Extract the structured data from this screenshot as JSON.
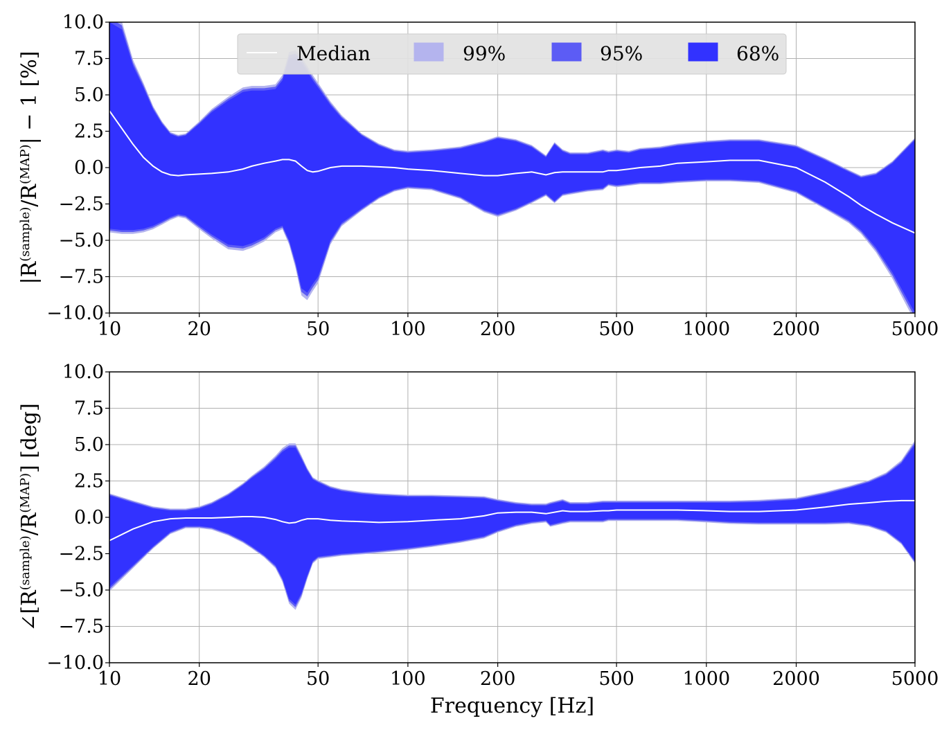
{
  "chart_data": [
    {
      "type": "area",
      "panel": "top",
      "ylabel": {
        "pre": "|R",
        "sup1": "(sample)",
        "mid": "/R",
        "sup2": "(MAP)",
        "post": "| − 1 [%]"
      },
      "xlabel": "",
      "xscale": "log",
      "xlim": [
        10,
        5000
      ],
      "ylim": [
        -10.0,
        10.0
      ],
      "xticks": [
        10,
        20,
        50,
        100,
        200,
        500,
        1000,
        2000,
        5000
      ],
      "yticks": [
        "−10.0",
        "−7.5",
        "−5.0",
        "−2.5",
        "0.0",
        "2.5",
        "5.0",
        "7.5",
        "10.0"
      ],
      "yticks_values": [
        -10,
        -7.5,
        -5,
        -2.5,
        0,
        2.5,
        5,
        7.5,
        10
      ],
      "grid": true,
      "legend": {
        "placement": "top-center",
        "entries": [
          "Median",
          "99%",
          "95%",
          "68%"
        ]
      },
      "x": [
        10,
        11,
        12,
        13,
        14,
        15,
        16,
        17,
        18,
        20,
        22,
        25,
        28,
        30,
        33,
        36,
        38,
        40,
        42,
        44,
        46,
        48,
        50,
        55,
        60,
        70,
        80,
        90,
        100,
        120,
        150,
        180,
        200,
        230,
        260,
        290,
        310,
        330,
        350,
        400,
        450,
        470,
        500,
        550,
        600,
        700,
        800,
        1000,
        1200,
        1500,
        2000,
        2500,
        3000,
        3300,
        3700,
        4200,
        5000
      ],
      "series": [
        {
          "name": "Median",
          "values": [
            3.9,
            2.7,
            1.6,
            0.7,
            0.1,
            -0.3,
            -0.5,
            -0.55,
            -0.5,
            -0.45,
            -0.4,
            -0.3,
            -0.1,
            0.1,
            0.3,
            0.45,
            0.55,
            0.55,
            0.45,
            0.1,
            -0.2,
            -0.3,
            -0.25,
            0.0,
            0.1,
            0.1,
            0.05,
            0.0,
            -0.1,
            -0.2,
            -0.4,
            -0.55,
            -0.55,
            -0.4,
            -0.3,
            -0.5,
            -0.35,
            -0.3,
            -0.3,
            -0.3,
            -0.3,
            -0.2,
            -0.2,
            -0.1,
            0.0,
            0.1,
            0.3,
            0.4,
            0.5,
            0.5,
            0.0,
            -1.0,
            -2.0,
            -2.6,
            -3.2,
            -3.8,
            -4.5
          ]
        },
        {
          "name": "68% upper",
          "values": [
            10.0,
            9.5,
            7.0,
            5.5,
            4.0,
            3.0,
            2.3,
            2.1,
            2.2,
            3.0,
            3.8,
            4.6,
            5.2,
            5.3,
            5.3,
            5.4,
            6.0,
            7.5,
            7.6,
            7.2,
            6.6,
            6.0,
            5.5,
            4.3,
            3.4,
            2.2,
            1.5,
            1.1,
            1.0,
            1.1,
            1.3,
            1.7,
            2.0,
            1.8,
            1.4,
            0.7,
            1.6,
            1.1,
            0.9,
            0.9,
            1.1,
            1.0,
            1.1,
            1.0,
            1.2,
            1.3,
            1.5,
            1.7,
            1.8,
            1.8,
            1.4,
            0.5,
            -0.3,
            -0.7,
            -0.5,
            0.3,
            1.9
          ]
        },
        {
          "name": "68% lower",
          "values": [
            -4.2,
            -4.3,
            -4.3,
            -4.2,
            -4.0,
            -3.7,
            -3.4,
            -3.2,
            -3.3,
            -4.0,
            -4.6,
            -5.3,
            -5.4,
            -5.2,
            -4.8,
            -4.2,
            -4.0,
            -5.0,
            -6.5,
            -8.3,
            -8.6,
            -8.0,
            -7.5,
            -5.0,
            -3.8,
            -2.8,
            -2.0,
            -1.5,
            -1.3,
            -1.4,
            -2.0,
            -2.9,
            -3.2,
            -2.8,
            -2.3,
            -1.8,
            -2.3,
            -1.8,
            -1.7,
            -1.5,
            -1.4,
            -1.1,
            -1.2,
            -1.1,
            -1.0,
            -1.0,
            -0.9,
            -0.8,
            -0.8,
            -0.9,
            -1.6,
            -2.7,
            -3.6,
            -4.3,
            -5.5,
            -7.2,
            -10.0
          ]
        }
      ],
      "colors": {
        "band68": "#3232ff",
        "band95": "#5c5cf5",
        "band99": "#b4b4ee",
        "median": "#ffffff",
        "grid": "#b0b0b0"
      }
    },
    {
      "type": "area",
      "panel": "bottom",
      "ylabel": {
        "pre": "∠[R",
        "sup1": "(sample)",
        "mid": "/R",
        "sup2": "(MAP)",
        "post": "] [deg]"
      },
      "xlabel": "Frequency [Hz]",
      "xscale": "log",
      "xlim": [
        10,
        5000
      ],
      "ylim": [
        -10.0,
        10.0
      ],
      "xticks": [
        10,
        20,
        50,
        100,
        200,
        500,
        1000,
        2000,
        5000
      ],
      "yticks": [
        "−10.0",
        "−7.5",
        "−5.0",
        "−2.5",
        "0.0",
        "2.5",
        "5.0",
        "7.5",
        "10.0"
      ],
      "yticks_values": [
        -10,
        -7.5,
        -5,
        -2.5,
        0,
        2.5,
        5,
        7.5,
        10
      ],
      "grid": true,
      "x": [
        10,
        12,
        14,
        16,
        18,
        20,
        22,
        25,
        28,
        30,
        33,
        36,
        38,
        40,
        42,
        44,
        46,
        48,
        50,
        55,
        60,
        70,
        80,
        100,
        120,
        150,
        180,
        200,
        230,
        260,
        290,
        300,
        330,
        350,
        400,
        450,
        470,
        500,
        550,
        600,
        700,
        800,
        1000,
        1200,
        1500,
        2000,
        2500,
        3000,
        3500,
        4000,
        4500,
        5000
      ],
      "series": [
        {
          "name": "Median",
          "values": [
            -1.6,
            -0.8,
            -0.3,
            -0.1,
            -0.05,
            -0.05,
            -0.05,
            0.0,
            0.05,
            0.05,
            0.0,
            -0.15,
            -0.3,
            -0.4,
            -0.35,
            -0.2,
            -0.1,
            -0.1,
            -0.1,
            -0.2,
            -0.25,
            -0.3,
            -0.35,
            -0.3,
            -0.2,
            -0.1,
            0.1,
            0.3,
            0.35,
            0.35,
            0.25,
            0.3,
            0.45,
            0.4,
            0.4,
            0.45,
            0.45,
            0.5,
            0.5,
            0.5,
            0.5,
            0.5,
            0.45,
            0.4,
            0.4,
            0.5,
            0.7,
            0.9,
            1.0,
            1.1,
            1.15,
            1.15
          ]
        },
        {
          "name": "68% upper",
          "values": [
            1.5,
            1.0,
            0.6,
            0.45,
            0.45,
            0.6,
            0.9,
            1.5,
            2.2,
            2.7,
            3.3,
            4.0,
            4.5,
            4.8,
            4.8,
            4.0,
            3.2,
            2.6,
            2.4,
            2.0,
            1.8,
            1.6,
            1.5,
            1.4,
            1.4,
            1.35,
            1.3,
            1.1,
            0.9,
            0.8,
            0.8,
            0.9,
            1.1,
            0.9,
            0.9,
            1.0,
            1.0,
            1.0,
            1.0,
            1.0,
            1.0,
            1.0,
            1.0,
            1.0,
            1.05,
            1.2,
            1.6,
            2.0,
            2.4,
            2.9,
            3.7,
            5.0
          ]
        },
        {
          "name": "68% lower",
          "values": [
            -4.8,
            -3.3,
            -2.0,
            -1.0,
            -0.6,
            -0.6,
            -0.7,
            -1.1,
            -1.6,
            -2.0,
            -2.6,
            -3.3,
            -4.2,
            -5.6,
            -6.0,
            -5.2,
            -4.0,
            -3.0,
            -2.7,
            -2.6,
            -2.5,
            -2.4,
            -2.3,
            -2.1,
            -1.9,
            -1.6,
            -1.3,
            -0.9,
            -0.5,
            -0.3,
            -0.2,
            -0.5,
            -0.3,
            -0.2,
            -0.2,
            -0.2,
            -0.1,
            -0.1,
            -0.1,
            -0.1,
            -0.1,
            -0.1,
            -0.2,
            -0.3,
            -0.35,
            -0.35,
            -0.35,
            -0.3,
            -0.5,
            -0.9,
            -1.7,
            -3.0
          ]
        }
      ],
      "colors": {
        "band68": "#3232ff",
        "band95": "#5c5cf5",
        "band99": "#b4b4ee",
        "median": "#ffffff",
        "grid": "#b0b0b0"
      }
    }
  ]
}
